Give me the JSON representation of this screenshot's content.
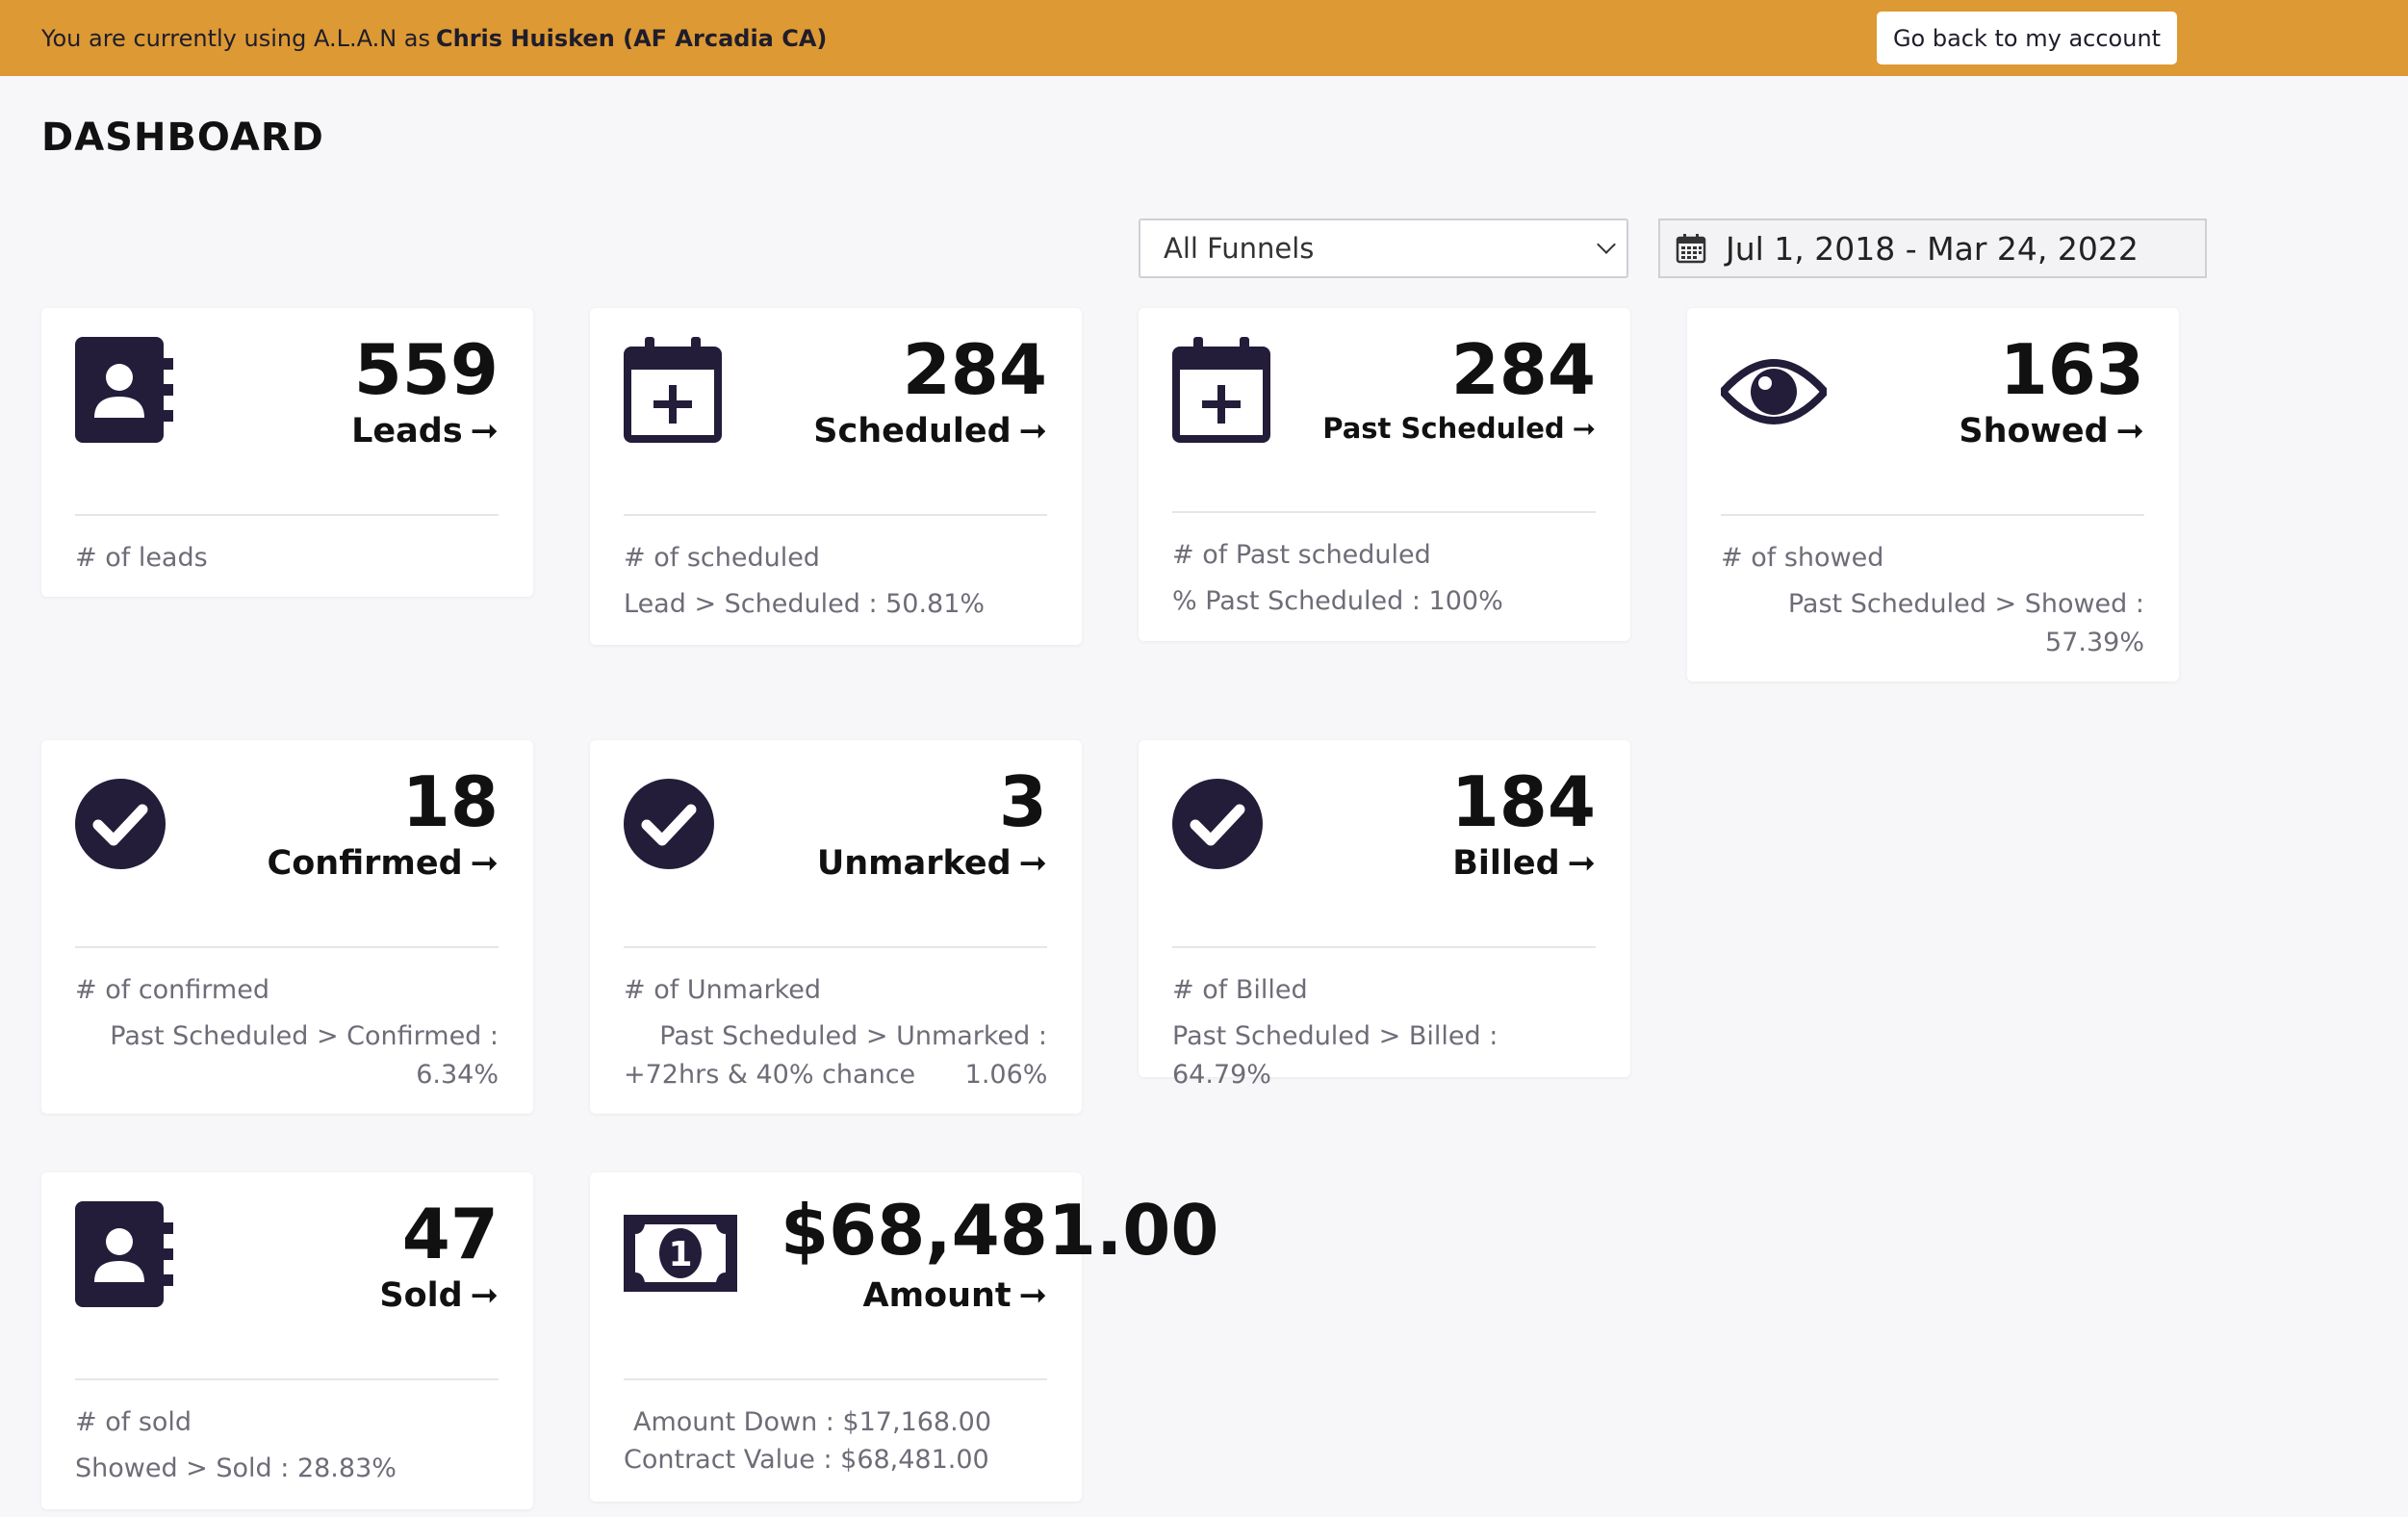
{
  "banner": {
    "prefix": "You are currently using A.L.A.N as",
    "user": "Chris Huisken (AF Arcadia CA)",
    "back_button": "Go back to my account"
  },
  "page_title": "DASHBOARD",
  "filters": {
    "funnel_selected": "All Funnels",
    "date_range": "Jul 1, 2018 - Mar 24, 2022"
  },
  "cards": {
    "leads": {
      "value": "559",
      "label": "Leads",
      "desc": "# of leads"
    },
    "scheduled": {
      "value": "284",
      "label": "Scheduled",
      "desc": "# of scheduled",
      "ratio": "Lead > Scheduled : 50.81%"
    },
    "past_scheduled": {
      "value": "284",
      "label": "Past Scheduled",
      "desc": "# of Past scheduled",
      "ratio": "% Past Scheduled : 100%"
    },
    "showed": {
      "value": "163",
      "label": "Showed",
      "desc": "# of showed",
      "ratio_line1": "Past Scheduled > Showed :",
      "ratio_line2": "57.39%"
    },
    "confirmed": {
      "value": "18",
      "label": "Confirmed",
      "desc": "# of confirmed",
      "ratio_line1": "Past Scheduled > Confirmed :",
      "ratio_line2": "6.34%"
    },
    "unmarked": {
      "value": "3",
      "label": "Unmarked",
      "desc": "# of Unmarked",
      "ratio_line1": "Past Scheduled > Unmarked :",
      "ratio_line2": "+72hrs & 40% chance      1.06%"
    },
    "billed": {
      "value": "184",
      "label": "Billed",
      "desc": "# of Billed",
      "ratio": "Past Scheduled > Billed : 64.79%"
    },
    "sold": {
      "value": "47",
      "label": "Sold",
      "desc": "# of sold",
      "ratio": "Showed > Sold : 28.83%"
    },
    "amount": {
      "value": "$68,481.00",
      "label": "Amount",
      "down": "Amount Down : $17,168.00",
      "contract": "Contract Value : $68,481.00"
    }
  },
  "arrow": "➞",
  "colors": {
    "banner": "#dd9933",
    "icon": "#231d3a",
    "background": "#f7f7f9"
  }
}
